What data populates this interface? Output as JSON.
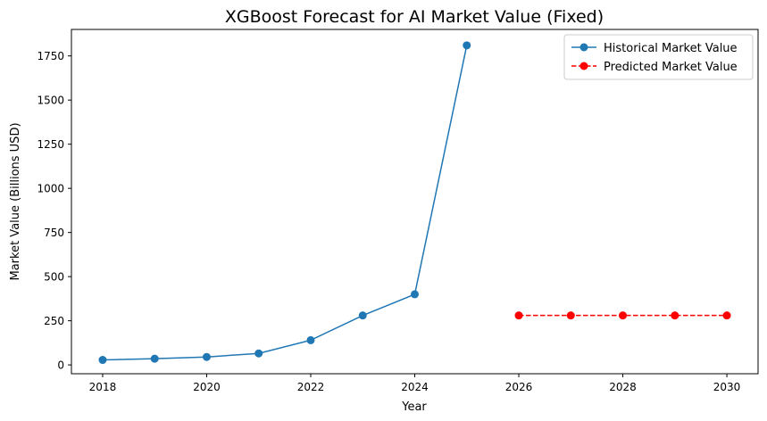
{
  "chart_data": {
    "type": "line",
    "title": "XGBoost Forecast for AI Market Value (Fixed)",
    "xlabel": "Year",
    "ylabel": "Market Value (Billions USD)",
    "xlim": [
      2017.4,
      2030.6
    ],
    "ylim": [
      -50,
      1900
    ],
    "xticks": [
      2018,
      2020,
      2022,
      2024,
      2026,
      2028,
      2030
    ],
    "yticks": [
      0,
      250,
      500,
      750,
      1000,
      1250,
      1500,
      1750
    ],
    "grid": false,
    "legend_position": "top-right",
    "series": [
      {
        "name": "Historical Market Value",
        "style": "solid",
        "marker": "circle",
        "color": "#1f77b4",
        "x": [
          2018,
          2019,
          2020,
          2021,
          2022,
          2023,
          2024,
          2025
        ],
        "y": [
          28,
          35,
          45,
          65,
          140,
          280,
          400,
          1810
        ]
      },
      {
        "name": "Predicted Market Value",
        "style": "dashed",
        "marker": "circle",
        "color": "#ff0000",
        "x": [
          2026,
          2027,
          2028,
          2029,
          2030
        ],
        "y": [
          280,
          280,
          280,
          280,
          280
        ]
      }
    ]
  }
}
